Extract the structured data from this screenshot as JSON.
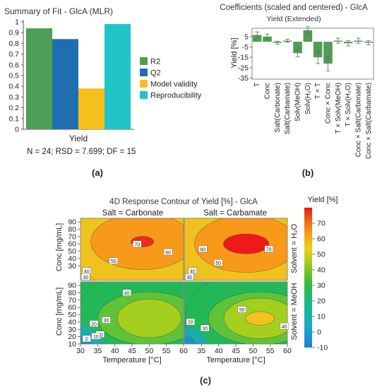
{
  "chart_data": [
    {
      "id": "a",
      "type": "bar",
      "panel_label": "(a)",
      "title": "Summary of Fit - GlcA (MLR)",
      "xlabel": "Yield",
      "footnote": "N = 24; RSD = 7.699; DF = 15",
      "ylim": [
        0,
        1
      ],
      "yticks": [
        "0",
        "0.1",
        "0.2",
        "0.3",
        "0.4",
        "0.5",
        "0.6",
        "0.7",
        "0.8",
        "0.9",
        "1"
      ],
      "legend_position": "right",
      "series": [
        {
          "name": "R2",
          "value": 0.94,
          "color": "#4f9d57"
        },
        {
          "name": "Q2",
          "value": 0.84,
          "color": "#1f6fb0"
        },
        {
          "name": "Model validity",
          "value": 0.38,
          "color": "#f5bf1e"
        },
        {
          "name": "Reproducibility",
          "value": 0.98,
          "color": "#20c4c8"
        }
      ]
    },
    {
      "id": "b",
      "type": "bar",
      "panel_label": "(b)",
      "title": "Coefficients (scaled and centered) - GlcA",
      "subtitle": "Yield (Extended)",
      "ylabel": "Yield [%]",
      "ylim": [
        -36,
        13
      ],
      "yticks": [
        "5",
        "-5",
        "-15",
        "-25",
        "-35"
      ],
      "bar_color": "#4f9d57",
      "categories": [
        "T",
        "Conc",
        "Salt(Carbonate)",
        "Salt(Carbamate)",
        "Solv(MeOH)",
        "Solv(H₂O)",
        "T × T",
        "Conc × Conc",
        "T × Solv(MeOH)",
        "T × Solv(H₂O)",
        "Conc × Salt(Carbonate)",
        "Conc × Salt(Carbamate)"
      ],
      "values": [
        6.5,
        5.0,
        -1.0,
        1.0,
        -11.0,
        11.0,
        -15.0,
        -21.0,
        1.0,
        -1.5,
        1.0,
        -1.0
      ],
      "errors": [
        3.0,
        2.5,
        1.5,
        1.5,
        3.5,
        3.5,
        6.0,
        7.0,
        2.5,
        2.5,
        2.5,
        2.0
      ]
    },
    {
      "id": "c",
      "type": "heatmap",
      "panel_label": "(c)",
      "title": "4D Response Contour of Yield [%] - GlcA",
      "xlabel": "Temperature [°C]",
      "ylabel": "Conc [mg/mL]",
      "xticks": [
        "30",
        "35",
        "40",
        "45",
        "50",
        "55",
        "60"
      ],
      "yticks": [
        "10",
        "20",
        "30",
        "40",
        "50",
        "60",
        "70",
        "80",
        "90"
      ],
      "col_labels": [
        "Salt = Carbonate",
        "Salt = Carbamate"
      ],
      "row_labels": [
        "Solvent = H₂O",
        "Solvent = MeOH"
      ],
      "colorbar_title": "Yield [%]",
      "colorbar_range": [
        -10,
        80
      ],
      "colorbar_ticks": [
        "70",
        "60",
        "50",
        "40",
        "30",
        "20",
        "10",
        "0",
        "-10"
      ],
      "panels": [
        {
          "salt": "Carbonate",
          "solvent": "H₂O",
          "peak_temperature": 48,
          "peak_conc": 63,
          "peak_yield": 73,
          "contour_labels": [
            "30",
            "40",
            "50",
            "60",
            "70"
          ]
        },
        {
          "salt": "Carbamate",
          "solvent": "H₂O",
          "peak_temperature": 48,
          "peak_conc": 60,
          "peak_yield": 76,
          "contour_labels": [
            "30",
            "40",
            "50",
            "60",
            "70"
          ]
        },
        {
          "salt": "Carbonate",
          "solvent": "MeOH",
          "peak_temperature": 50,
          "peak_conc": 45,
          "peak_yield": 47,
          "contour_labels": [
            "0",
            "10",
            "20",
            "20",
            "30",
            "40"
          ]
        },
        {
          "salt": "Carbamate",
          "solvent": "MeOH",
          "peak_temperature": 52,
          "peak_conc": 45,
          "peak_yield": 53,
          "contour_labels": [
            "20",
            "30",
            "40",
            "50"
          ]
        }
      ]
    }
  ]
}
